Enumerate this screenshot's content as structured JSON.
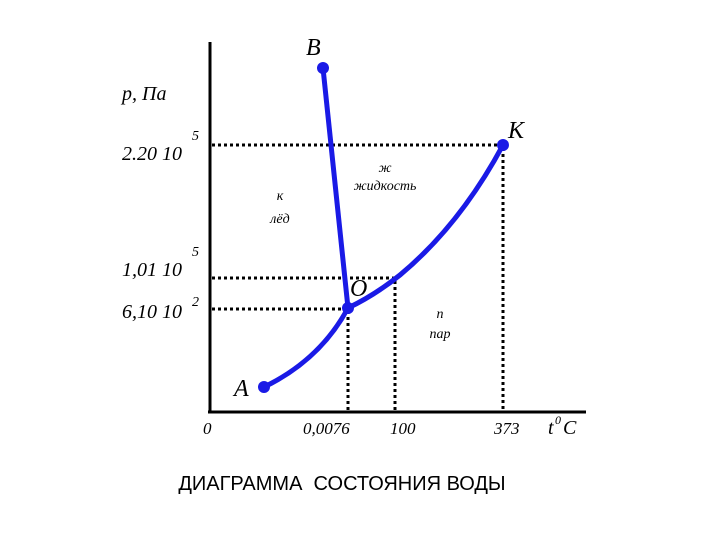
{
  "axes": {
    "y_label": "p, Па",
    "y_ticks": [
      {
        "text": "2.20 10",
        "exp": "5"
      },
      {
        "text": "1,01 10",
        "exp": "5"
      },
      {
        "text": "6,10 10",
        "exp": "2"
      }
    ],
    "x_ticks": [
      "0",
      "0,0076",
      "100",
      "373"
    ],
    "x_label": {
      "base": "t",
      "sup": "0",
      "unit": "C"
    }
  },
  "points": {
    "b": "B",
    "k": "K",
    "o": "O",
    "a": "A"
  },
  "regions": {
    "liquid": {
      "letter": "ж",
      "name": "жидкость"
    },
    "ice": {
      "letter": "к",
      "name": "лёд"
    },
    "vapor": {
      "letter": "п",
      "name": "пар"
    }
  },
  "caption": "ДИАГРАММА  СОСТОЯНИЯ ВОДЫ"
}
